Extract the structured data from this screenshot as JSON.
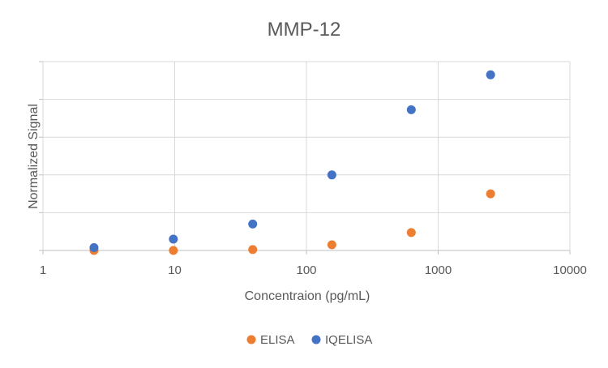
{
  "chart_data": {
    "type": "scatter",
    "title": "MMP-12",
    "xlabel": "Concentraion (pg/mL)",
    "ylabel": "Normalized Signal",
    "x_scale": "log",
    "xlim": [
      1,
      10000
    ],
    "x_ticks": [
      "1",
      "10",
      "100",
      "1000",
      "10000"
    ],
    "x_tick_values": [
      1,
      10,
      100,
      1000,
      10000
    ],
    "ylim": [
      0,
      1
    ],
    "y_gridlines": [
      0,
      0.2,
      0.4,
      0.6,
      0.8,
      1.0
    ],
    "y_tick_labels_shown": false,
    "grid": true,
    "legend_position": "bottom",
    "series": [
      {
        "name": "ELISA",
        "color": "#ED7D31",
        "points": [
          {
            "x": 2.44,
            "y": 0.0
          },
          {
            "x": 9.77,
            "y": 0.0
          },
          {
            "x": 39.1,
            "y": 0.005
          },
          {
            "x": 156,
            "y": 0.03
          },
          {
            "x": 625,
            "y": 0.095
          },
          {
            "x": 2500,
            "y": 0.3
          }
        ]
      },
      {
        "name": "IQELISA",
        "color": "#4472C4",
        "points": [
          {
            "x": 2.44,
            "y": 0.015
          },
          {
            "x": 9.77,
            "y": 0.06
          },
          {
            "x": 39.1,
            "y": 0.14
          },
          {
            "x": 156,
            "y": 0.4
          },
          {
            "x": 625,
            "y": 0.745
          },
          {
            "x": 2500,
            "y": 0.93
          }
        ]
      }
    ]
  }
}
